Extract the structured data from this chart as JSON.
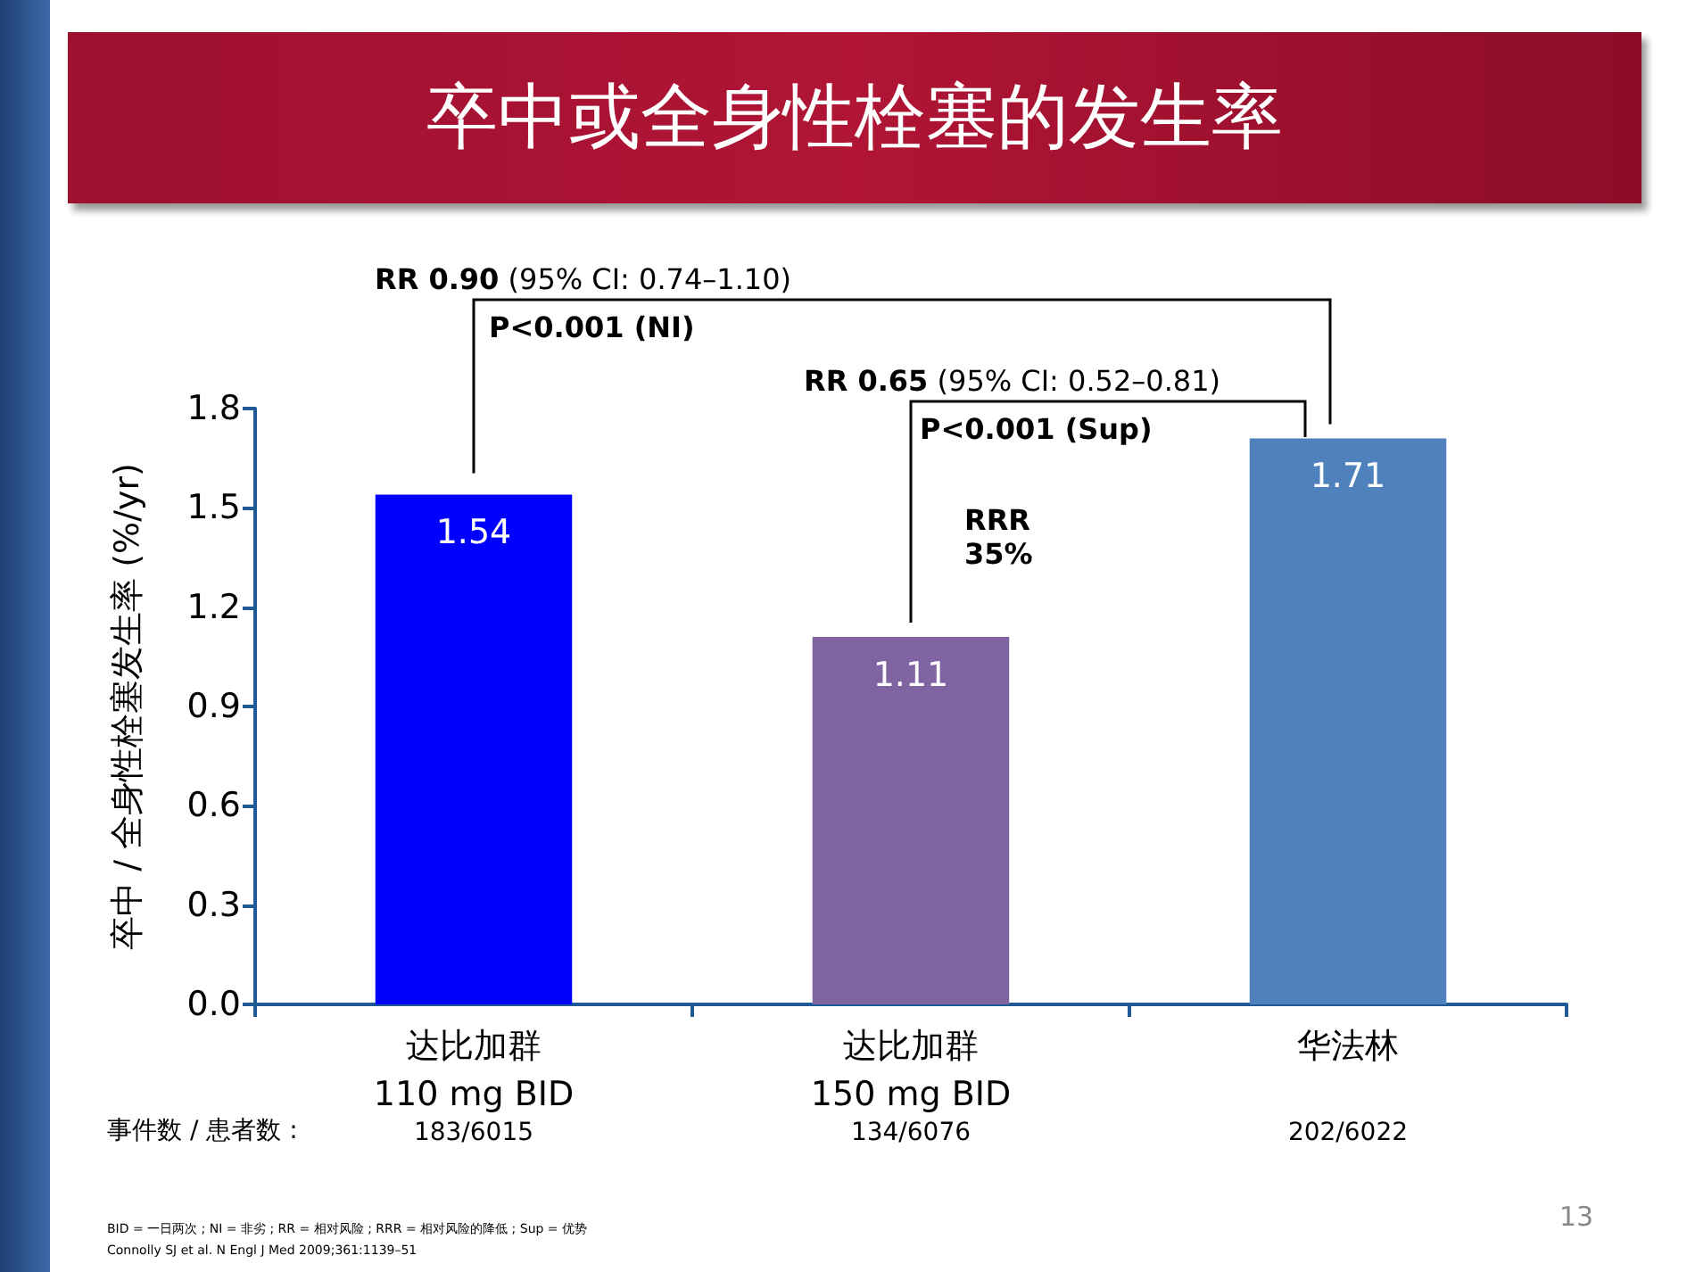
{
  "chart_data": {
    "type": "bar",
    "title": "卒中或全身性栓塞的发生率",
    "ylabel": "卒中 / 全身性栓塞发生率 (%/yr)",
    "categories": [
      "达比加群\n110 mg BID",
      "达比加群\n150 mg BID",
      "华法林"
    ],
    "values": [
      1.54,
      1.11,
      1.71
    ],
    "colors": [
      "#0000ff",
      "#8064a2",
      "#4f81bd"
    ],
    "data_labels": true,
    "ylim": [
      0,
      1.8
    ],
    "yticks": [
      {
        "value": 0,
        "label": "0.0"
      },
      0.3,
      0.6,
      0.9,
      1.2,
      1.5,
      1.8
    ],
    "grid": false,
    "annotations": [
      "RR 0.90 (95% CI: 0.74–1.10)",
      "P<0.001 (NI)",
      "RR 0.65 (95% CI: 0.52–0.81)",
      "P<0.001 (Sup)",
      "RRR\n35%",
      "事件数 / 患者数 :",
      "183/6015",
      "134/6076",
      "202/6022",
      "BID = 一日两次 ; NI = 非劣 ; RR = 相对风险 ; RRR = 相对风险的降低 ; Sup = 优势",
      "Connolly SJ et al. N Engl J Med 2009;361:1139–51",
      "13"
    ]
  }
}
